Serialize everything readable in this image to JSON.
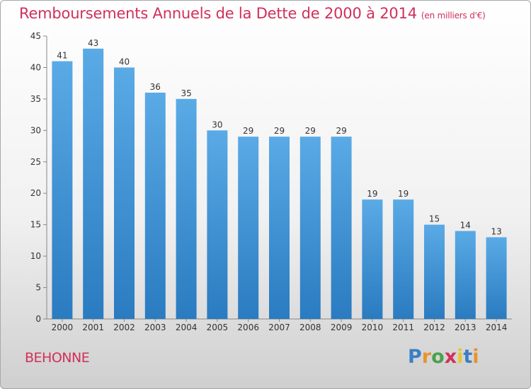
{
  "header": {
    "title": "Remboursements Annuels de la Dette de 2000 à 2014",
    "unit": "(en milliers d'€)"
  },
  "footer": {
    "place": "BEHONNE",
    "logo_text": "Proxiti"
  },
  "colors": {
    "accent": "#d0305a",
    "bar_top": "#5aaae6",
    "bar_bottom": "#2a7bc0"
  },
  "chart_data": {
    "type": "bar",
    "title": "Remboursements Annuels de la Dette de 2000 à 2014",
    "xlabel": "",
    "ylabel": "",
    "categories": [
      "2000",
      "2001",
      "2002",
      "2003",
      "2004",
      "2005",
      "2006",
      "2007",
      "2008",
      "2009",
      "2010",
      "2011",
      "2012",
      "2013",
      "2014"
    ],
    "values": [
      41,
      43,
      40,
      36,
      35,
      30,
      29,
      29,
      29,
      29,
      19,
      19,
      15,
      14,
      13
    ],
    "ylim": [
      0,
      45
    ],
    "yticks": [
      0,
      5,
      10,
      15,
      20,
      25,
      30,
      35,
      40,
      45
    ],
    "grid": false,
    "legend": "none",
    "data_labels": true
  }
}
